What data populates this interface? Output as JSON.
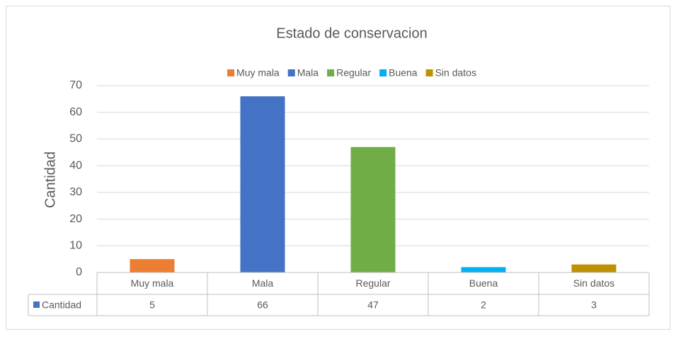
{
  "chart_data": {
    "type": "bar",
    "title": "Estado de conservacion",
    "y_label": "Cantidad",
    "series_name": "Cantidad",
    "categories": [
      "Muy mala",
      "Mala",
      "Regular",
      "Buena",
      "Sin datos"
    ],
    "values": [
      5,
      66,
      47,
      2,
      3
    ],
    "colors": [
      "#ED7D31",
      "#4472C4",
      "#70AD47",
      "#00B0F0",
      "#BF9000"
    ],
    "ylim": [
      0,
      70
    ],
    "yticks": [
      0,
      10,
      20,
      30,
      40,
      50,
      60,
      70
    ],
    "grid": true,
    "legend": "top"
  }
}
